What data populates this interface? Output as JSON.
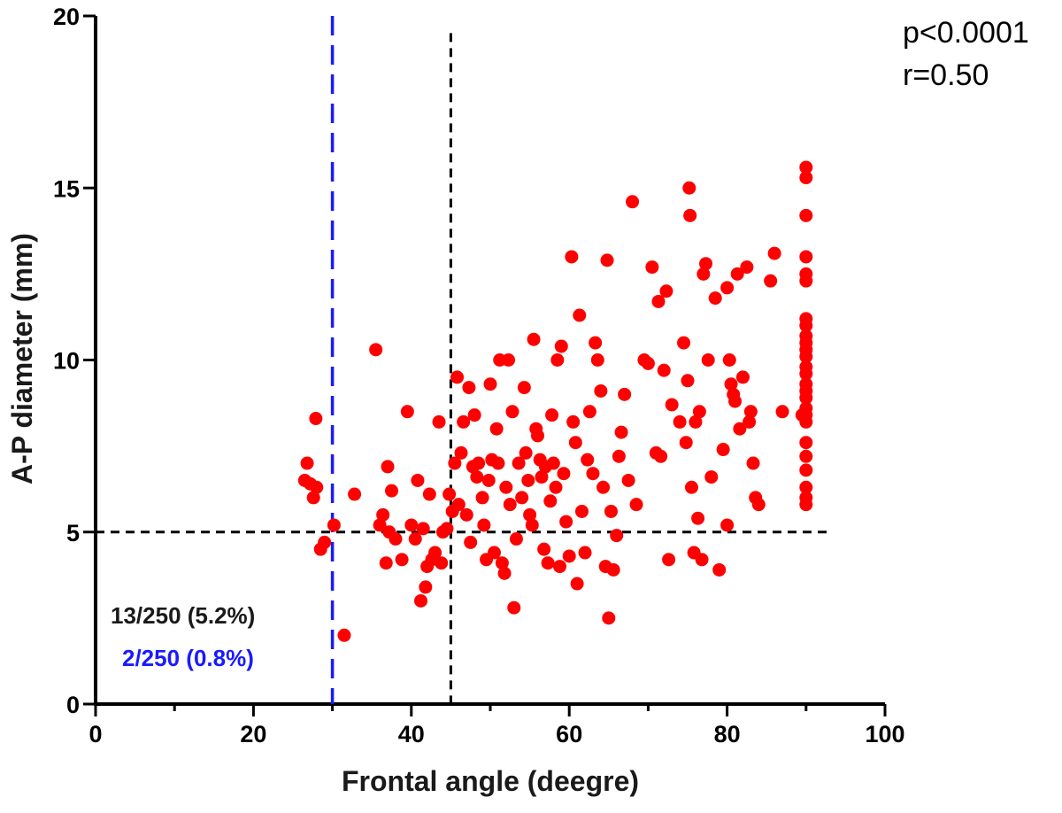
{
  "chart_data": {
    "type": "scatter",
    "title": "",
    "xlabel": "Frontal angle (deegre)",
    "ylabel": "A-P diameter (mm)",
    "xlim": [
      0,
      100
    ],
    "ylim": [
      0,
      20
    ],
    "x_ticks": [
      0,
      20,
      40,
      60,
      80,
      100
    ],
    "y_ticks": [
      0,
      5,
      10,
      15,
      20
    ],
    "x_minor_ticks": [
      10,
      30,
      50,
      70,
      90
    ],
    "grid": false,
    "point_color": "#ff0000",
    "reference_lines": [
      {
        "orientation": "vertical",
        "x": 30,
        "y_range": [
          0,
          20
        ],
        "color": "#1a1aff",
        "style": "long-dash"
      },
      {
        "orientation": "vertical",
        "x": 45,
        "y_range": [
          0,
          19.5
        ],
        "color": "#000000",
        "style": "dash"
      },
      {
        "orientation": "horizontal",
        "y": 5,
        "x_range": [
          0,
          93
        ],
        "color": "#000000",
        "style": "dash"
      }
    ],
    "annotations": {
      "p_value": "p<0.0001",
      "r_value": "r=0.50",
      "count_black": "13/250 (5.2%)",
      "count_blue": "2/250 (0.8%)",
      "count_black_color": "#1a1a1a",
      "count_blue_color": "#1a1aff"
    },
    "points": [
      [
        26.5,
        6.5
      ],
      [
        26.8,
        7.0
      ],
      [
        27.2,
        6.4
      ],
      [
        27.6,
        6.0
      ],
      [
        27.9,
        8.3
      ],
      [
        28.0,
        6.3
      ],
      [
        28.5,
        4.5
      ],
      [
        29.0,
        4.7
      ],
      [
        30.2,
        5.2
      ],
      [
        31.5,
        2.0
      ],
      [
        32.8,
        6.1
      ],
      [
        35.5,
        10.3
      ],
      [
        36.0,
        5.2
      ],
      [
        36.4,
        5.5
      ],
      [
        36.8,
        4.1
      ],
      [
        37.0,
        6.9
      ],
      [
        37.2,
        5.0
      ],
      [
        37.5,
        6.2
      ],
      [
        38.0,
        4.8
      ],
      [
        38.8,
        4.2
      ],
      [
        39.5,
        8.5
      ],
      [
        40.0,
        5.2
      ],
      [
        40.5,
        4.8
      ],
      [
        40.8,
        6.5
      ],
      [
        41.2,
        3.0
      ],
      [
        41.5,
        5.1
      ],
      [
        41.8,
        3.4
      ],
      [
        42.0,
        4.0
      ],
      [
        42.3,
        6.1
      ],
      [
        42.6,
        4.2
      ],
      [
        43.0,
        4.4
      ],
      [
        43.5,
        8.2
      ],
      [
        43.8,
        4.1
      ],
      [
        44.0,
        5.0
      ],
      [
        44.5,
        5.1
      ],
      [
        44.8,
        6.1
      ],
      [
        45.2,
        5.6
      ],
      [
        45.5,
        7.0
      ],
      [
        45.8,
        9.5
      ],
      [
        46.0,
        5.8
      ],
      [
        46.3,
        7.3
      ],
      [
        46.6,
        8.2
      ],
      [
        47.0,
        5.5
      ],
      [
        47.3,
        9.2
      ],
      [
        47.5,
        4.7
      ],
      [
        47.8,
        6.9
      ],
      [
        48.0,
        8.4
      ],
      [
        48.3,
        6.6
      ],
      [
        48.5,
        7.0
      ],
      [
        49.0,
        6.0
      ],
      [
        49.2,
        5.2
      ],
      [
        49.5,
        4.2
      ],
      [
        49.8,
        6.5
      ],
      [
        50.0,
        9.3
      ],
      [
        50.2,
        7.1
      ],
      [
        50.5,
        4.4
      ],
      [
        50.8,
        8.0
      ],
      [
        51.0,
        7.0
      ],
      [
        51.2,
        10.0
      ],
      [
        51.5,
        4.1
      ],
      [
        51.8,
        3.8
      ],
      [
        52.0,
        6.3
      ],
      [
        52.3,
        10.0
      ],
      [
        52.5,
        5.8
      ],
      [
        52.8,
        8.5
      ],
      [
        53.0,
        2.8
      ],
      [
        53.3,
        4.8
      ],
      [
        53.6,
        7.0
      ],
      [
        54.0,
        6.0
      ],
      [
        54.3,
        9.2
      ],
      [
        54.5,
        7.3
      ],
      [
        54.8,
        6.5
      ],
      [
        55.0,
        5.5
      ],
      [
        55.3,
        5.2
      ],
      [
        55.5,
        10.6
      ],
      [
        55.8,
        8.0
      ],
      [
        56.0,
        7.8
      ],
      [
        56.3,
        7.1
      ],
      [
        56.5,
        6.6
      ],
      [
        56.8,
        4.5
      ],
      [
        57.0,
        6.9
      ],
      [
        57.3,
        4.1
      ],
      [
        57.6,
        5.9
      ],
      [
        57.8,
        8.4
      ],
      [
        58.0,
        7.0
      ],
      [
        58.3,
        6.3
      ],
      [
        58.5,
        10.0
      ],
      [
        58.8,
        4.0
      ],
      [
        59.0,
        10.4
      ],
      [
        59.3,
        6.7
      ],
      [
        59.6,
        5.3
      ],
      [
        60.0,
        4.3
      ],
      [
        60.3,
        13.0
      ],
      [
        60.5,
        8.2
      ],
      [
        60.8,
        7.6
      ],
      [
        61.0,
        3.5
      ],
      [
        61.3,
        11.3
      ],
      [
        61.6,
        5.6
      ],
      [
        62.0,
        4.4
      ],
      [
        62.3,
        7.1
      ],
      [
        62.6,
        8.5
      ],
      [
        63.0,
        6.7
      ],
      [
        63.3,
        10.5
      ],
      [
        63.6,
        10.0
      ],
      [
        64.0,
        9.1
      ],
      [
        64.3,
        6.3
      ],
      [
        64.6,
        4.0
      ],
      [
        64.8,
        12.9
      ],
      [
        65.0,
        2.5
      ],
      [
        65.3,
        5.6
      ],
      [
        65.6,
        3.9
      ],
      [
        66.0,
        4.9
      ],
      [
        66.3,
        7.2
      ],
      [
        66.6,
        7.9
      ],
      [
        67.0,
        9.0
      ],
      [
        67.5,
        6.5
      ],
      [
        68.0,
        14.6
      ],
      [
        68.5,
        5.8
      ],
      [
        69.5,
        10.0
      ],
      [
        70.0,
        9.9
      ],
      [
        70.5,
        12.7
      ],
      [
        71.0,
        7.3
      ],
      [
        71.3,
        11.7
      ],
      [
        71.6,
        7.2
      ],
      [
        72.0,
        9.7
      ],
      [
        72.3,
        12.0
      ],
      [
        72.6,
        4.2
      ],
      [
        73.0,
        8.7
      ],
      [
        74.0,
        8.2
      ],
      [
        74.5,
        10.5
      ],
      [
        74.8,
        7.6
      ],
      [
        75.0,
        9.4
      ],
      [
        75.2,
        15.0
      ],
      [
        75.3,
        14.2
      ],
      [
        75.5,
        6.3
      ],
      [
        75.8,
        4.4
      ],
      [
        76.0,
        8.2
      ],
      [
        76.3,
        5.4
      ],
      [
        76.5,
        8.5
      ],
      [
        76.8,
        4.2
      ],
      [
        77.0,
        12.5
      ],
      [
        77.3,
        12.8
      ],
      [
        77.6,
        10.0
      ],
      [
        78.0,
        6.6
      ],
      [
        78.5,
        11.8
      ],
      [
        79.0,
        3.9
      ],
      [
        79.5,
        7.4
      ],
      [
        80.0,
        12.1
      ],
      [
        80.3,
        10.0
      ],
      [
        80.5,
        9.3
      ],
      [
        80.8,
        9.0
      ],
      [
        81.0,
        8.8
      ],
      [
        81.3,
        12.5
      ],
      [
        81.6,
        8.0
      ],
      [
        82.0,
        9.5
      ],
      [
        82.5,
        12.7
      ],
      [
        82.8,
        8.2
      ],
      [
        83.0,
        8.5
      ],
      [
        83.3,
        7.0
      ],
      [
        83.6,
        6.0
      ],
      [
        84.0,
        5.8
      ],
      [
        85.5,
        12.3
      ],
      [
        86.0,
        13.1
      ],
      [
        87.0,
        8.5
      ],
      [
        80.0,
        5.2
      ],
      [
        89.5,
        8.4
      ],
      [
        90,
        15.6
      ],
      [
        90,
        15.3
      ],
      [
        90,
        14.2
      ],
      [
        90,
        13.0
      ],
      [
        90,
        12.5
      ],
      [
        90,
        12.3
      ],
      [
        90,
        11.2
      ],
      [
        90,
        11.0
      ],
      [
        90,
        10.7
      ],
      [
        90,
        10.5
      ],
      [
        90,
        10.3
      ],
      [
        90,
        10.1
      ],
      [
        90,
        9.8
      ],
      [
        90,
        9.6
      ],
      [
        90,
        9.3
      ],
      [
        90,
        9.1
      ],
      [
        90,
        8.9
      ],
      [
        90,
        8.6
      ],
      [
        90,
        8.4
      ],
      [
        90,
        8.2
      ],
      [
        90,
        7.6
      ],
      [
        90,
        7.2
      ],
      [
        90,
        6.8
      ],
      [
        90,
        6.3
      ],
      [
        90,
        6.0
      ],
      [
        90,
        5.8
      ]
    ]
  }
}
